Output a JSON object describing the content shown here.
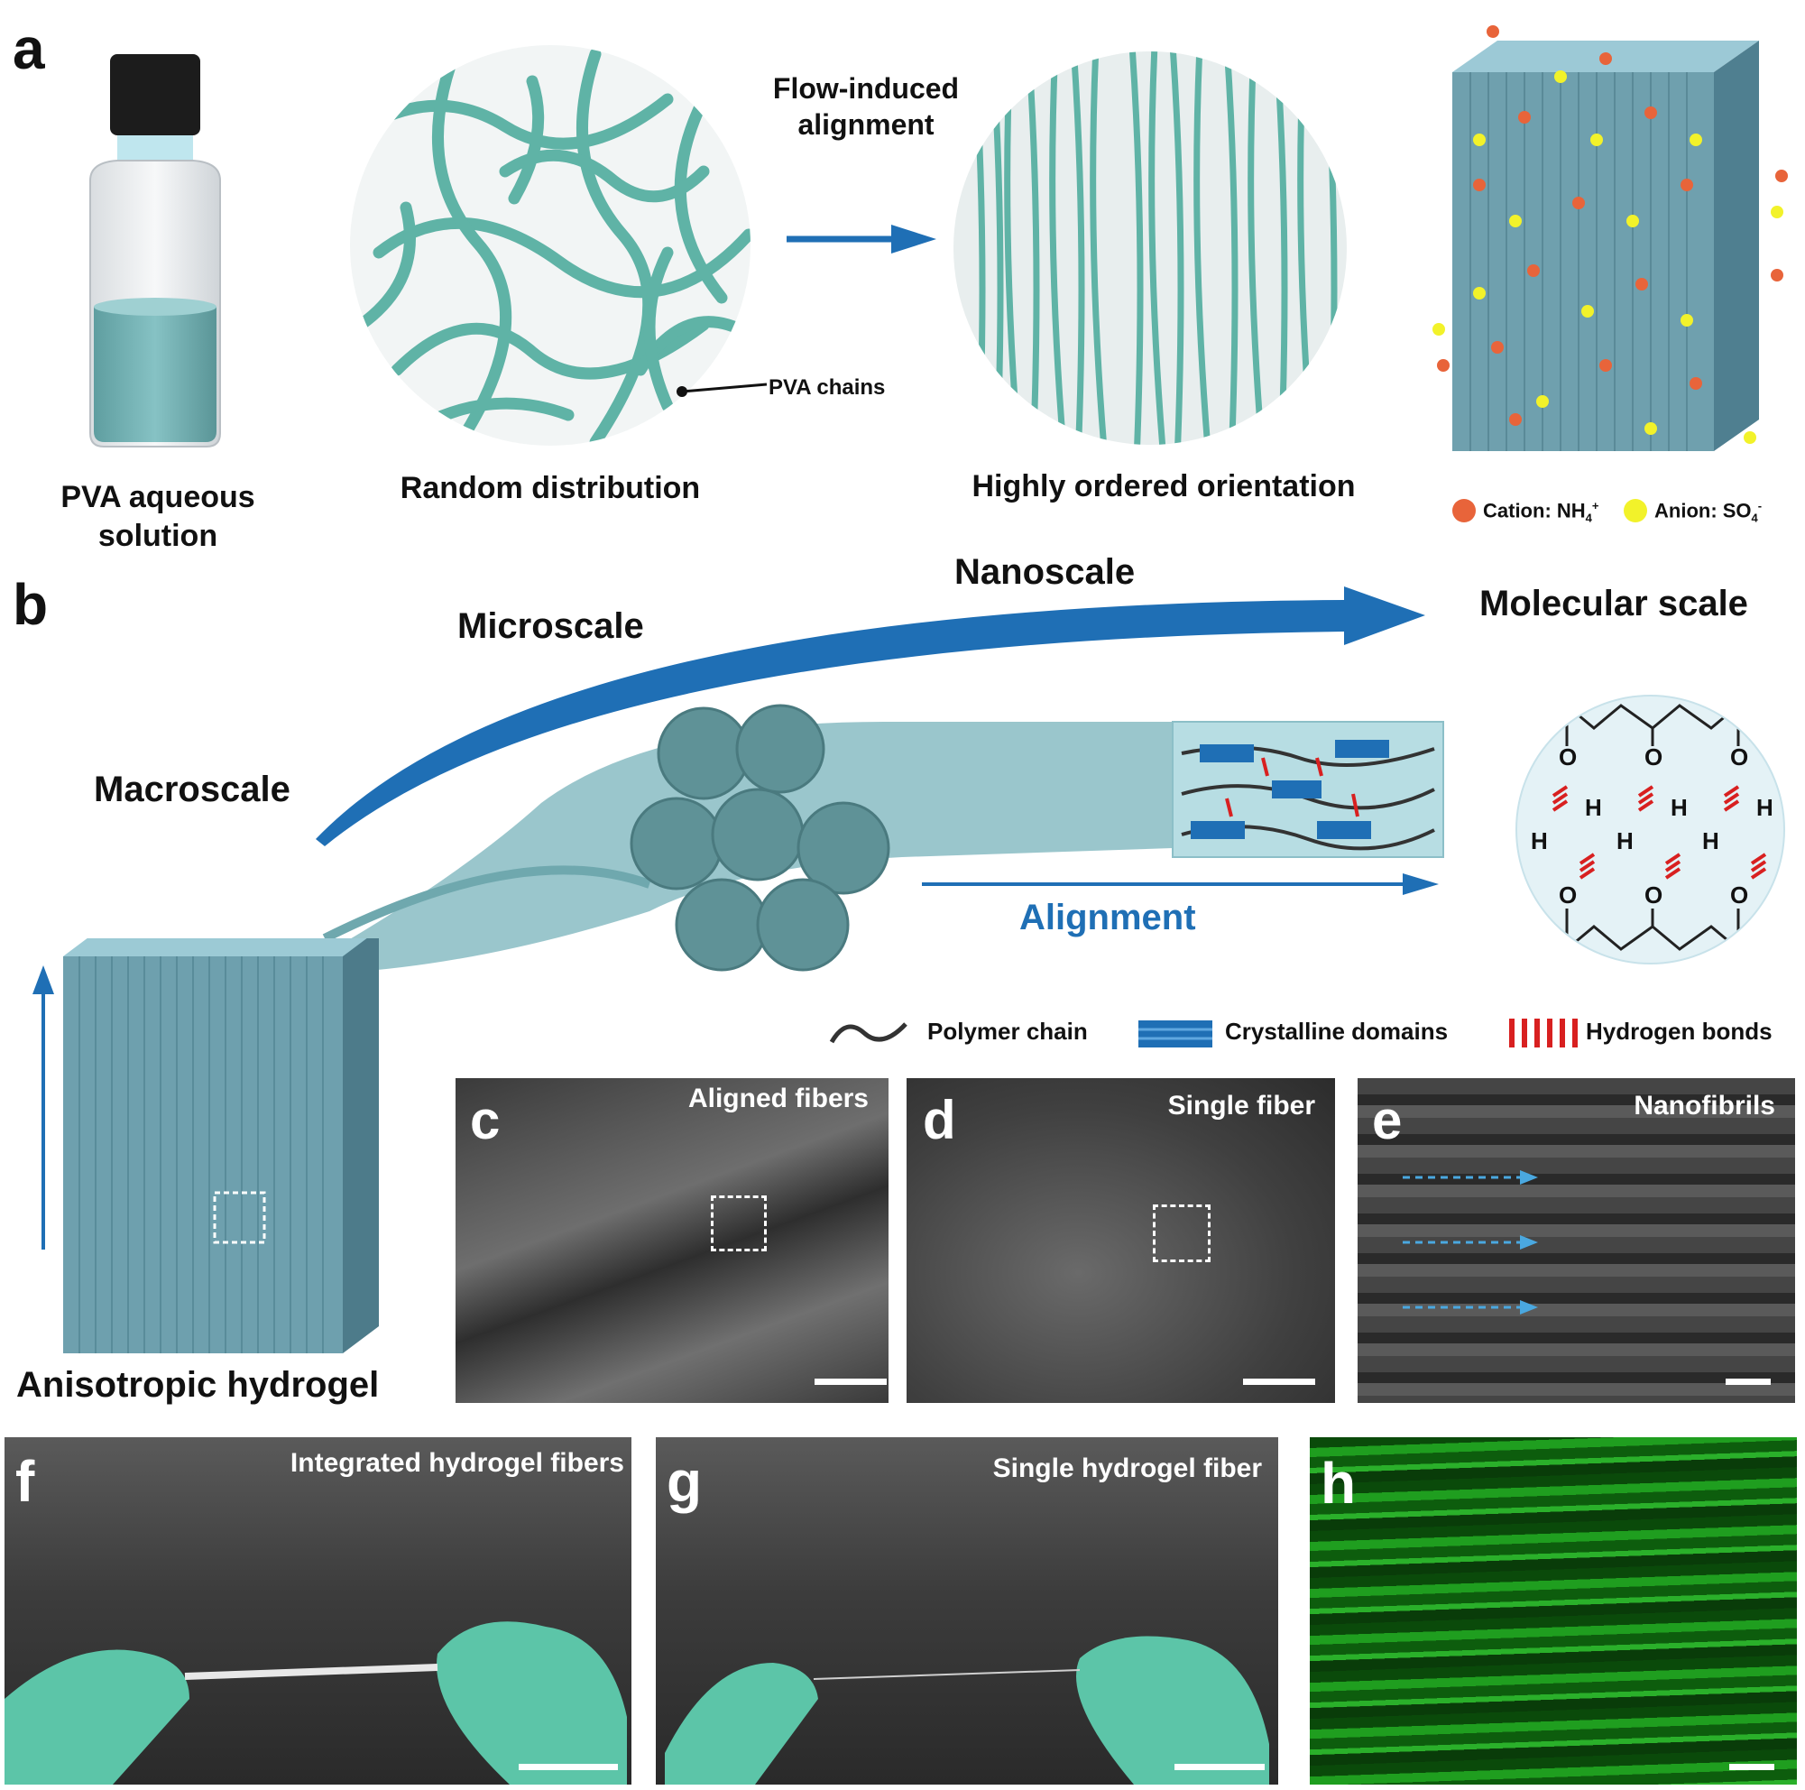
{
  "panel_a": {
    "label": "a",
    "vial_caption_line1": "PVA aqueous",
    "vial_caption_line2": "solution",
    "random_caption": "Random distribution",
    "pva_chains_label": "PVA chains",
    "flow_label_line1": "Flow-induced",
    "flow_label_line2": "alignment",
    "ordered_caption": "Highly ordered orientation",
    "cation_label": "Cation: NH",
    "cation_sub": "4",
    "cation_sup": "+",
    "anion_label": "Anion: SO",
    "anion_sub": "4",
    "anion_sup": "-",
    "colors": {
      "teal": "#5fb3a6",
      "cation": "#e8643a",
      "anion": "#f2f22a",
      "arrow": "#1f6fb5"
    }
  },
  "panel_b": {
    "label": "b",
    "nanoscale": "Nanoscale",
    "molecular_scale": "Molecular scale",
    "microscale": "Microscale",
    "macroscale": "Macroscale",
    "alignment": "Alignment",
    "anisotropic": "Anisotropic hydrogel",
    "legend_polymer": "Polymer chain",
    "legend_crystalline": "Crystalline domains",
    "legend_hbonds": "Hydrogen bonds",
    "atom_O": "O",
    "atom_H": "H"
  },
  "panel_c": {
    "label": "c",
    "tag": "Aligned fibers"
  },
  "panel_d": {
    "label": "d",
    "tag": "Single fiber"
  },
  "panel_e": {
    "label": "e",
    "tag": "Nanofibrils"
  },
  "panel_f": {
    "label": "f",
    "tag": "Integrated hydrogel fibers"
  },
  "panel_g": {
    "label": "g",
    "tag": "Single hydrogel fiber"
  },
  "panel_h": {
    "label": "h"
  }
}
